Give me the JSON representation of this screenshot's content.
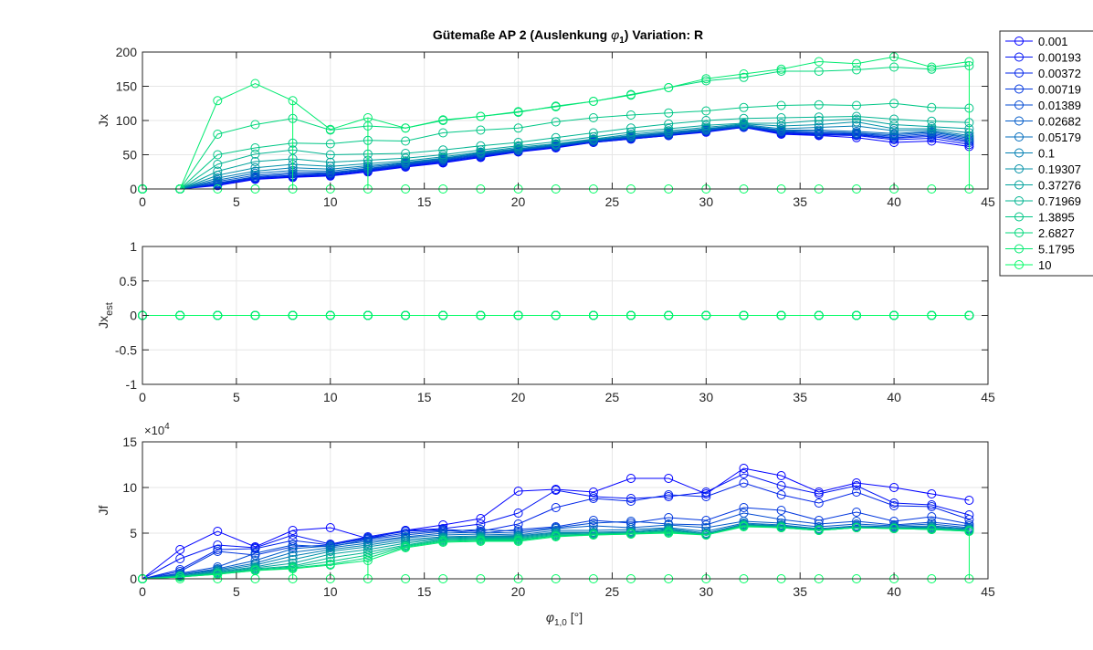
{
  "title_prefix": "Gütemaße AP 2 (Auslenkung ",
  "title_symbol": "φ",
  "title_sub": "1",
  "title_suffix": ")  Variation: R",
  "colors": {
    "series": [
      "#0000ff",
      "#0012f4",
      "#0024e9",
      "#0036de",
      "#0048d3",
      "#005ac8",
      "#006cbd",
      "#007eb2",
      "#0090a7",
      "#00a29c",
      "#00b491",
      "#00c686",
      "#00d87b",
      "#00ea70",
      "#00fc65"
    ],
    "axis": "#262626",
    "grid": "#e6e6e6",
    "background": "#ffffff"
  },
  "legend": {
    "location": "outside right, top",
    "labels": [
      "0.001",
      "0.00193",
      "0.00372",
      "0.00719",
      "0.01389",
      "0.02682",
      "0.05179",
      "0.1",
      "0.19307",
      "0.37276",
      "0.71969",
      "1.3895",
      "2.6827",
      "5.1795",
      "10"
    ]
  },
  "chart_data": [
    {
      "type": "line",
      "ylabel": "Jx",
      "xlim": [
        0,
        45
      ],
      "ylim": [
        0,
        200
      ],
      "xticks": [
        "0",
        "5",
        "10",
        "15",
        "20",
        "25",
        "30",
        "35",
        "40",
        "45"
      ],
      "yticks": [
        "0",
        "50",
        "100",
        "150",
        "200"
      ],
      "grid": true,
      "marker": "circle",
      "x": [
        0,
        2,
        4,
        6,
        8,
        10,
        12,
        14,
        16,
        18,
        20,
        22,
        24,
        26,
        28,
        30,
        32,
        34,
        36,
        38,
        40,
        42,
        44
      ],
      "series": [
        {
          "name": "0.001",
          "values": [
            0,
            0,
            5,
            14,
            17,
            19,
            25,
            32,
            38,
            46,
            54,
            60,
            68,
            73,
            78,
            83,
            90,
            80,
            78,
            75,
            68,
            70,
            62
          ]
        },
        {
          "name": "0.00193",
          "values": [
            0,
            0,
            6,
            15,
            18,
            20,
            26,
            33,
            39,
            47,
            55,
            61,
            68,
            73,
            78,
            84,
            90,
            81,
            79,
            78,
            72,
            74,
            65
          ]
        },
        {
          "name": "0.00372",
          "values": [
            0,
            0,
            7,
            16,
            19,
            21,
            27,
            34,
            40,
            48,
            55,
            62,
            69,
            74,
            79,
            84,
            91,
            82,
            80,
            79,
            74,
            77,
            68
          ]
        },
        {
          "name": "0.00719",
          "values": [
            0,
            0,
            8,
            17,
            20,
            22,
            28,
            35,
            41,
            49,
            56,
            62,
            69,
            75,
            79,
            85,
            91,
            83,
            81,
            80,
            75,
            79,
            70
          ]
        },
        {
          "name": "0.01389",
          "values": [
            0,
            0,
            9,
            18,
            22,
            23,
            29,
            36,
            42,
            50,
            56,
            63,
            70,
            75,
            80,
            85,
            92,
            84,
            82,
            81,
            77,
            81,
            72
          ]
        },
        {
          "name": "0.02682",
          "values": [
            0,
            0,
            11,
            20,
            24,
            24,
            30,
            37,
            43,
            51,
            57,
            63,
            71,
            76,
            81,
            86,
            92,
            85,
            84,
            82,
            79,
            83,
            74
          ]
        },
        {
          "name": "0.05179",
          "values": [
            0,
            0,
            13,
            23,
            27,
            26,
            32,
            38,
            44,
            52,
            58,
            64,
            71,
            77,
            82,
            87,
            93,
            86,
            86,
            84,
            81,
            84,
            76
          ]
        },
        {
          "name": "0.1",
          "values": [
            0,
            0,
            16,
            26,
            31,
            29,
            34,
            39,
            45,
            53,
            59,
            65,
            72,
            78,
            83,
            88,
            94,
            88,
            90,
            92,
            85,
            86,
            78
          ]
        },
        {
          "name": "0.19307",
          "values": [
            0,
            0,
            20,
            31,
            36,
            33,
            37,
            41,
            47,
            54,
            61,
            66,
            73,
            80,
            85,
            90,
            95,
            92,
            94,
            98,
            88,
            88,
            82
          ]
        },
        {
          "name": "0.37276",
          "values": [
            0,
            0,
            26,
            40,
            44,
            39,
            42,
            45,
            50,
            57,
            63,
            69,
            76,
            83,
            88,
            93,
            96,
            96,
            100,
            102,
            94,
            91,
            88
          ]
        },
        {
          "name": "0.71969",
          "values": [
            0,
            0,
            36,
            51,
            57,
            50,
            51,
            52,
            57,
            63,
            68,
            75,
            82,
            89,
            95,
            100,
            103,
            104,
            105,
            106,
            102,
            99,
            97
          ]
        },
        {
          "name": "1.3895",
          "values": [
            0,
            0,
            50,
            60,
            67,
            66,
            71,
            70,
            82,
            86,
            89,
            98,
            104,
            108,
            111,
            114,
            119,
            122,
            123,
            122,
            125,
            119,
            118
          ]
        },
        {
          "name": "2.6827",
          "values": [
            0,
            0,
            80,
            94,
            103,
            86,
            92,
            89,
            100,
            106,
            112,
            121,
            128,
            138,
            148,
            158,
            163,
            172,
            172,
            174,
            178,
            175,
            180
          ]
        },
        {
          "name": "5.1795",
          "values": [
            0,
            0,
            129,
            154,
            129,
            87,
            104,
            89,
            101,
            106,
            113,
            120,
            128,
            137,
            148,
            161,
            168,
            175,
            186,
            183,
            193,
            178,
            186
          ]
        },
        {
          "name": "10",
          "values": [
            0,
            0,
            0,
            0,
            0,
            0,
            0,
            0,
            0,
            0,
            0,
            0,
            0,
            0,
            0,
            0,
            0,
            0,
            0,
            0,
            0,
            0,
            0
          ]
        }
      ]
    },
    {
      "type": "line",
      "ylabel": "Jx",
      "ylabel_sub": "est",
      "xlim": [
        0,
        45
      ],
      "ylim": [
        -1,
        1
      ],
      "xticks": [
        "0",
        "5",
        "10",
        "15",
        "20",
        "25",
        "30",
        "35",
        "40",
        "45"
      ],
      "yticks": [
        "-1",
        "-0.5",
        "0",
        "0.5",
        "1"
      ],
      "grid": true,
      "marker": "circle",
      "x": [
        0,
        2,
        4,
        6,
        8,
        10,
        12,
        14,
        16,
        18,
        20,
        22,
        24,
        26,
        28,
        30,
        32,
        34,
        36,
        38,
        40,
        42,
        44
      ],
      "all_series_values": [
        0,
        0,
        0,
        0,
        0,
        0,
        0,
        0,
        0,
        0,
        0,
        0,
        0,
        0,
        0,
        0,
        0,
        0,
        0,
        0,
        0,
        0,
        0
      ]
    },
    {
      "type": "line",
      "ylabel": "Jf",
      "exponent_label": "×10",
      "exponent_power": "4",
      "xlim": [
        0,
        45
      ],
      "ylim": [
        0,
        15
      ],
      "xticks": [
        "0",
        "5",
        "10",
        "15",
        "20",
        "25",
        "30",
        "35",
        "40",
        "45"
      ],
      "yticks": [
        "0",
        "5",
        "10",
        "15"
      ],
      "grid": true,
      "marker": "circle",
      "x": [
        0,
        2,
        4,
        6,
        8,
        10,
        12,
        14,
        16,
        18,
        20,
        22,
        24,
        26,
        28,
        30,
        32,
        34,
        36,
        38,
        40,
        42,
        44
      ],
      "series": [
        {
          "name": "0.001",
          "values": [
            0,
            3.2,
            5.2,
            3.5,
            5.3,
            5.6,
            4.4,
            5.3,
            5.9,
            6.6,
            9.6,
            9.8,
            9.5,
            11.0,
            11.0,
            9.3,
            12.1,
            11.3,
            9.5,
            10.5,
            10.0,
            9.3,
            8.6
          ]
        },
        {
          "name": "0.00193",
          "values": [
            0,
            2.2,
            3.7,
            3.4,
            4.8,
            3.8,
            4.6,
            5.3,
            5.5,
            6.0,
            7.2,
            9.7,
            9.0,
            8.8,
            9.0,
            9.5,
            11.5,
            10.2,
            9.3,
            10.2,
            8.3,
            8.1,
            7.0
          ]
        },
        {
          "name": "0.00372",
          "values": [
            0,
            1.0,
            3.2,
            3.3,
            4.2,
            3.7,
            4.5,
            5.2,
            5.4,
            5.2,
            6.0,
            7.8,
            8.8,
            8.5,
            9.2,
            9.0,
            10.5,
            9.2,
            8.3,
            9.5,
            8.0,
            7.9,
            6.5
          ]
        },
        {
          "name": "0.00719",
          "values": [
            0,
            0.8,
            3.0,
            2.6,
            3.5,
            3.7,
            4.4,
            5.0,
            5.3,
            5.0,
            5.4,
            5.7,
            6.4,
            6.1,
            6.7,
            6.4,
            7.8,
            7.5,
            6.4,
            7.3,
            6.3,
            6.8,
            6.0
          ]
        },
        {
          "name": "0.01389",
          "values": [
            0,
            0.6,
            1.3,
            2.8,
            3.7,
            3.5,
            4.3,
            4.8,
            5.2,
            5.4,
            5.2,
            5.6,
            6.1,
            6.3,
            6.0,
            5.9,
            7.2,
            6.5,
            6.0,
            6.3,
            5.9,
            6.2,
            5.8
          ]
        },
        {
          "name": "0.02682",
          "values": [
            0,
            0.5,
            1.1,
            2.0,
            3.3,
            3.6,
            4.1,
            4.6,
            5.0,
            5.1,
            5.0,
            5.5,
            5.8,
            5.6,
            5.9,
            5.6,
            6.3,
            6.1,
            5.7,
            6.0,
            5.8,
            6.0,
            5.6
          ]
        },
        {
          "name": "0.05179",
          "values": [
            0,
            0.4,
            1.0,
            1.7,
            2.9,
            3.4,
            3.9,
            4.5,
            4.8,
            4.9,
            4.8,
            5.3,
            5.3,
            5.4,
            5.6,
            5.2,
            6.1,
            5.9,
            5.5,
            5.8,
            5.7,
            5.8,
            5.5
          ]
        },
        {
          "name": "0.1",
          "values": [
            0,
            0.4,
            0.9,
            1.5,
            2.5,
            3.2,
            3.7,
            4.3,
            4.6,
            4.7,
            4.7,
            5.1,
            5.1,
            5.2,
            5.5,
            5.0,
            6.0,
            5.8,
            5.4,
            5.7,
            5.6,
            5.7,
            5.4
          ]
        },
        {
          "name": "0.19307",
          "values": [
            0,
            0.3,
            0.8,
            1.3,
            2.1,
            3.0,
            3.5,
            4.1,
            4.5,
            4.6,
            4.6,
            5.0,
            5.0,
            5.1,
            5.4,
            4.9,
            5.9,
            5.8,
            5.4,
            5.6,
            5.6,
            5.6,
            5.4
          ]
        },
        {
          "name": "0.37276",
          "values": [
            0,
            0.3,
            0.7,
            1.2,
            1.7,
            2.7,
            3.2,
            3.9,
            4.4,
            4.5,
            4.5,
            4.9,
            5.0,
            5.0,
            5.3,
            4.9,
            5.9,
            5.7,
            5.4,
            5.6,
            5.6,
            5.5,
            5.3
          ]
        },
        {
          "name": "0.71969",
          "values": [
            0,
            0.3,
            0.6,
            1.1,
            1.4,
            2.3,
            2.9,
            3.7,
            4.3,
            4.4,
            4.4,
            4.8,
            4.9,
            5.0,
            5.2,
            4.8,
            5.8,
            5.7,
            5.4,
            5.6,
            5.5,
            5.5,
            5.3
          ]
        },
        {
          "name": "1.3895",
          "values": [
            0,
            0.2,
            0.6,
            1.0,
            1.3,
            1.9,
            2.6,
            3.6,
            4.2,
            4.3,
            4.3,
            4.7,
            4.9,
            5.0,
            5.2,
            4.8,
            5.8,
            5.6,
            5.3,
            5.6,
            5.5,
            5.4,
            5.3
          ]
        },
        {
          "name": "2.6827",
          "values": [
            0,
            0.2,
            0.5,
            0.9,
            1.2,
            1.6,
            2.3,
            3.5,
            4.1,
            4.2,
            4.2,
            4.7,
            4.8,
            4.9,
            5.1,
            4.8,
            5.8,
            5.6,
            5.3,
            5.6,
            5.5,
            5.4,
            5.2
          ]
        },
        {
          "name": "5.1795",
          "values": [
            0,
            0.2,
            0.5,
            0.9,
            1.1,
            1.5,
            2.0,
            3.4,
            4.0,
            4.1,
            4.1,
            4.6,
            4.8,
            4.9,
            5.0,
            4.8,
            5.7,
            5.6,
            5.3,
            5.6,
            5.5,
            5.4,
            5.2
          ]
        },
        {
          "name": "10",
          "values": [
            0,
            0,
            0,
            0,
            0,
            0,
            0,
            0,
            0,
            0,
            0,
            0,
            0,
            0,
            0,
            0,
            0,
            0,
            0,
            0,
            0,
            0,
            0
          ]
        }
      ]
    }
  ],
  "xlabel_symbol": "φ",
  "xlabel_sub": "1,0",
  "xlabel_unit": " [°]"
}
